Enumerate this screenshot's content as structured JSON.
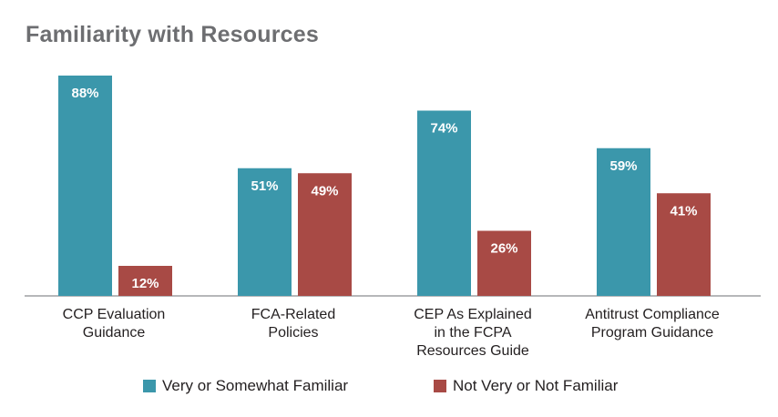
{
  "chart_data": {
    "type": "bar",
    "title": "Familiarity with Resources",
    "xlabel": "",
    "ylabel": "",
    "ylim": [
      0,
      100
    ],
    "grid": false,
    "legend_position": "bottom",
    "categories": [
      [
        "CCP Evaluation",
        "Guidance"
      ],
      [
        "FCA-Related",
        "Policies"
      ],
      [
        "CEP As Explained",
        "in the FCPA",
        "Resources Guide"
      ],
      [
        "Antitrust Compliance",
        "Program Guidance"
      ]
    ],
    "series": [
      {
        "name": "Very or Somewhat Familiar",
        "color": "#3b97ab",
        "values": [
          88,
          51,
          74,
          59
        ],
        "labels": [
          "88%",
          "51%",
          "74%",
          "59%"
        ]
      },
      {
        "name": "Not Very or Not Familiar",
        "color": "#a84a45",
        "values": [
          12,
          49,
          26,
          41
        ],
        "labels": [
          "12%",
          "49%",
          "26%",
          "41%"
        ]
      }
    ]
  }
}
